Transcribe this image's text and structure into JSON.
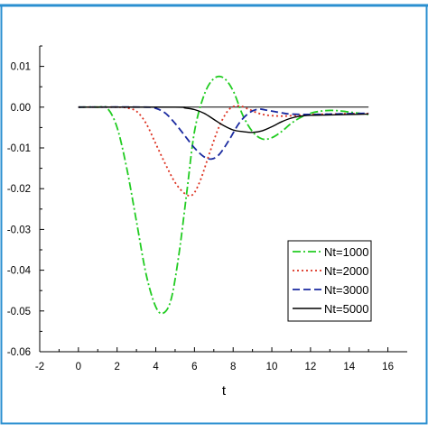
{
  "colors": {
    "frame": "#2a8fd0",
    "axis": "#000000"
  },
  "chart_data": {
    "type": "line",
    "title": "",
    "xlabel": "t",
    "ylabel": "",
    "xlim": [
      -2,
      17
    ],
    "ylim": [
      -0.06,
      0.015
    ],
    "xticks": [
      -2,
      0,
      2,
      4,
      6,
      8,
      10,
      12,
      14,
      16
    ],
    "xtick_labels": [
      "-2",
      "0",
      "2",
      "4",
      "6",
      "8",
      "10",
      "12",
      "14",
      "16"
    ],
    "yticks": [
      0.01,
      0.0,
      -0.01,
      -0.02,
      -0.03,
      -0.04,
      -0.05,
      -0.06
    ],
    "ytick_labels": [
      "0.01",
      "0.00",
      "-0.01",
      "-0.02",
      "-0.03",
      "-0.04",
      "-0.05",
      "-0.06"
    ],
    "grid": false,
    "legend_position": "lower-right",
    "reference_line": {
      "y": 0.0,
      "x_range": [
        0,
        15
      ],
      "color": "#000000"
    },
    "series": [
      {
        "name": "Nt=1000",
        "color": "#22cc22",
        "dash": "dashdot",
        "x": [
          0,
          1.0,
          1.5,
          2.0,
          2.5,
          3.0,
          3.5,
          4.0,
          4.4,
          4.8,
          5.2,
          5.6,
          6.0,
          6.5,
          7.0,
          7.5,
          8.0,
          8.5,
          9.0,
          9.5,
          10.0,
          10.5,
          11.0,
          11.5,
          12.0,
          12.5,
          13.0,
          13.5,
          14.0,
          14.5,
          15.0
        ],
        "y": [
          0.0,
          0.0,
          -0.0003,
          -0.005,
          -0.015,
          -0.028,
          -0.041,
          -0.049,
          -0.0505,
          -0.047,
          -0.036,
          -0.021,
          -0.006,
          0.003,
          0.007,
          0.0072,
          0.004,
          -0.002,
          -0.006,
          -0.0078,
          -0.0075,
          -0.006,
          -0.004,
          -0.0025,
          -0.0015,
          -0.001,
          -0.0008,
          -0.0009,
          -0.0012,
          -0.0015,
          -0.0018
        ]
      },
      {
        "name": "Nt=2000",
        "color": "#dd3322",
        "dash": "dotted",
        "x": [
          0,
          2.0,
          2.5,
          3.0,
          3.5,
          4.0,
          4.5,
          5.0,
          5.5,
          5.9,
          6.3,
          6.8,
          7.3,
          7.8,
          8.3,
          8.8,
          9.3,
          9.8,
          10.5,
          11.0,
          12.0,
          13.0,
          14.0,
          15.0
        ],
        "y": [
          0.0,
          0.0,
          -0.0002,
          -0.001,
          -0.004,
          -0.009,
          -0.014,
          -0.0185,
          -0.0212,
          -0.0215,
          -0.018,
          -0.011,
          -0.0045,
          -0.0005,
          0.0003,
          -0.0005,
          -0.0015,
          -0.002,
          -0.0022,
          -0.0021,
          -0.0018,
          -0.0017,
          -0.0016,
          -0.0016
        ]
      },
      {
        "name": "Nt=3000",
        "color": "#1a2aa0",
        "dash": "dashed",
        "x": [
          0,
          3.5,
          4.0,
          4.5,
          5.0,
          5.5,
          6.0,
          6.5,
          6.9,
          7.3,
          7.8,
          8.3,
          8.8,
          9.3,
          9.8,
          10.5,
          11.0,
          12.0,
          13.0,
          14.0,
          15.0
        ],
        "y": [
          0.0,
          0.0,
          -0.0003,
          -0.0015,
          -0.004,
          -0.007,
          -0.01,
          -0.0122,
          -0.0127,
          -0.0115,
          -0.008,
          -0.004,
          -0.0015,
          -0.0005,
          -0.0008,
          -0.0014,
          -0.0017,
          -0.0018,
          -0.0017,
          -0.0016,
          -0.0015
        ]
      },
      {
        "name": "Nt=5000",
        "color": "#000000",
        "dash": "solid",
        "x": [
          0,
          5.0,
          5.5,
          6.0,
          6.5,
          7.0,
          7.5,
          8.0,
          8.5,
          9.0,
          9.5,
          10.0,
          10.5,
          11.0,
          11.5,
          12.0,
          13.0,
          14.0,
          15.0
        ],
        "y": [
          0.0,
          0.0,
          -0.0002,
          -0.0006,
          -0.0015,
          -0.003,
          -0.0045,
          -0.0056,
          -0.006,
          -0.0062,
          -0.0058,
          -0.0048,
          -0.0036,
          -0.0027,
          -0.0022,
          -0.002,
          -0.0019,
          -0.0018,
          -0.0017
        ]
      }
    ]
  }
}
